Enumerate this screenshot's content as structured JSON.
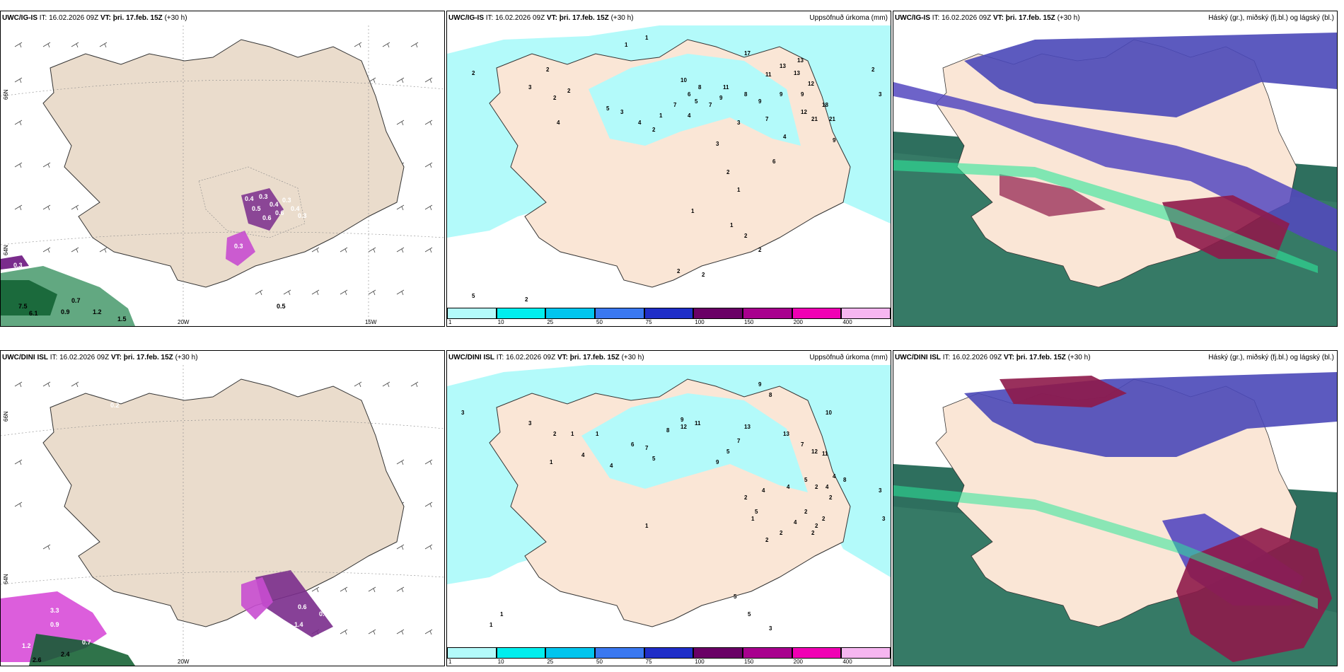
{
  "panels": {
    "top_left": {
      "model": "UWC/IG-IS",
      "it": "IT: 16.02.2026 09Z",
      "vt": "VT: þri. 17.feb. 15Z",
      "lead": "(+30 h)",
      "right_title": ""
    },
    "top_mid": {
      "model": "UWC/IG-IS",
      "it": "IT: 16.02.2026 09Z",
      "vt": "VT: þri. 17.feb. 15Z",
      "lead": "(+30 h)",
      "right_title": "Uppsöfnuð úrkoma (mm)"
    },
    "top_right": {
      "model": "UWC/IG-IS",
      "it": "IT: 16.02.2026 09Z",
      "vt": "VT: þri. 17.feb. 15Z",
      "lead": "(+30 h)",
      "right_title": "Háský (gr.), miðský (fj.bl.) og lágský (bl.)"
    },
    "bottom_left": {
      "model": "UWC/DINI ISL",
      "it": "IT: 16.02.2026 09Z",
      "vt": "VT: þri. 17.feb. 15Z",
      "lead": "(+30 h)",
      "right_title": ""
    },
    "bottom_mid": {
      "model": "UWC/DINI ISL",
      "it": "IT: 16.02.2026 09Z",
      "vt": "VT: þri. 17.feb. 15Z",
      "lead": "(+30 h)",
      "right_title": "Uppsöfnuð úrkoma (mm)"
    },
    "bottom_right": {
      "model": "UWC/DINI ISL",
      "it": "IT: 16.02.2026 09Z",
      "vt": "VT: þri. 17.feb. 15Z",
      "lead": "(+30 h)",
      "right_title": "Háský (gr.), miðský (fj.bl.) og lágský (bl.)"
    }
  },
  "axes": {
    "lon_20": "20W",
    "lon_15": "15W",
    "lat_66": "66N",
    "lat_64": "64N"
  },
  "colorbar": {
    "levels": [
      "1",
      "10",
      "25",
      "50",
      "75",
      "100",
      "150",
      "200",
      "400"
    ],
    "colors": [
      "#b3fafa",
      "#00eeee",
      "#00c5ee",
      "#3a78f0",
      "#1f2ec8",
      "#6a0066",
      "#a8008e",
      "#f000b4",
      "#f6b6f0"
    ]
  },
  "precip_labels_top": [
    "1",
    "2",
    "2",
    "3",
    "2",
    "2",
    "4",
    "3",
    "2",
    "1",
    "5",
    "4",
    "1",
    "7",
    "4",
    "5",
    "6",
    "7",
    "8",
    "9",
    "10",
    "11",
    "3",
    "8",
    "9",
    "7",
    "9",
    "9",
    "12",
    "11",
    "13",
    "13",
    "12",
    "17",
    "13",
    "2",
    "3",
    "18",
    "21",
    "21",
    "9",
    "6",
    "4",
    "3",
    "2",
    "1",
    "1",
    "1",
    "2",
    "2",
    "2",
    "2",
    "5",
    "2"
  ],
  "precip_labels_bottom": [
    "3",
    "3",
    "2",
    "1",
    "1",
    "1",
    "1",
    "4",
    "4",
    "5",
    "6",
    "7",
    "8",
    "9",
    "9",
    "11",
    "12",
    "13",
    "13",
    "9",
    "8",
    "10",
    "7",
    "7",
    "5",
    "2",
    "2",
    "2",
    "2",
    "2",
    "4",
    "1",
    "2",
    "3",
    "1",
    "5",
    "5",
    "3",
    "5",
    "4",
    "2",
    "4",
    "5",
    "2",
    "1",
    "12",
    "11",
    "3",
    "2",
    "4",
    "4",
    "8"
  ],
  "wind_labels_top": [
    "0.4",
    "0.3",
    "0.4",
    "0.6",
    "0.6",
    "0.5",
    "0.3",
    "0.4",
    "0.3",
    "0.3",
    "0.5",
    "7.5",
    "6.1",
    "0.9",
    "0.7",
    "1.2",
    "1.5",
    "0.3"
  ],
  "wind_labels_bottom": [
    "0.2",
    "0.4",
    "0.6",
    "3.3",
    "1.2",
    "2.6",
    "2.4",
    "0.9",
    "0.7",
    "1.4",
    "0.4",
    "0.7",
    "0.3"
  ]
}
